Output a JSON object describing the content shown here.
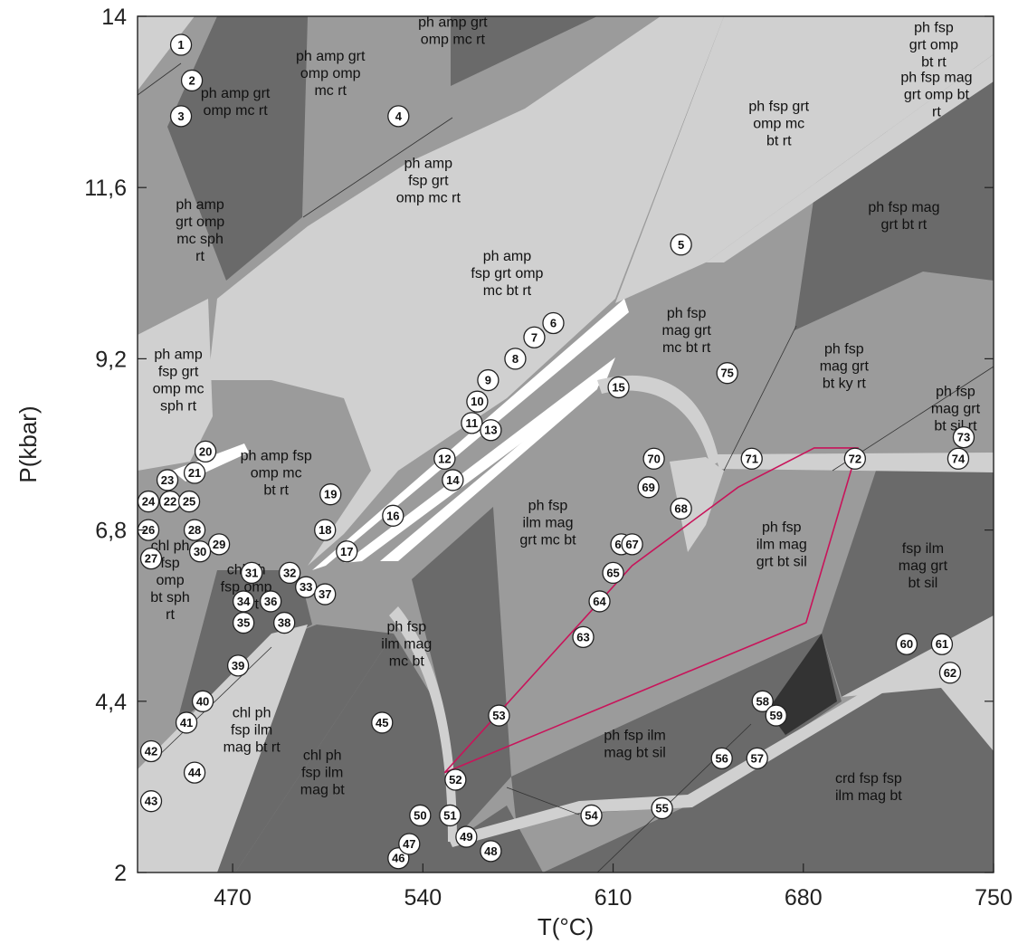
{
  "chart_data": {
    "type": "pseudosection",
    "xlabel": "T(°C)",
    "ylabel": "P(kbar)",
    "xlim": [
      435,
      750
    ],
    "ylim": [
      2,
      14
    ],
    "xticks": [
      "470",
      "540",
      "610",
      "680",
      "750"
    ],
    "yticks": [
      "2",
      "4,4",
      "6,8",
      "9,2",
      "11,6",
      "14"
    ],
    "fields": [
      {
        "label": [
          "ph amp grt",
          "omp mc rt"
        ],
        "T": 471,
        "P": 12.8,
        "shade": "#6a6a6a"
      },
      {
        "label": [
          "ph amp grt",
          "omp omp",
          "mc rt"
        ],
        "T": 506,
        "P": 13.2,
        "shade": "#9b9b9b"
      },
      {
        "label": [
          "ph amp grt",
          "omp mc rt"
        ],
        "T": 551,
        "P": 13.8,
        "shade": "#6a6a6a"
      },
      {
        "label": [
          "ph fsp",
          "grt omp",
          "bt  rt"
        ],
        "T": 728,
        "P": 13.6,
        "shade": "#6a6a6a"
      },
      {
        "label": [
          "ph fsp grt",
          "omp mc",
          "bt rt"
        ],
        "T": 671,
        "P": 12.5,
        "shade": "#9b9b9b"
      },
      {
        "label": [
          "ph fsp mag",
          "grt omp bt",
          "rt"
        ],
        "T": 729,
        "P": 12.9,
        "shade": "#9b9b9b"
      },
      {
        "label": [
          "ph amp",
          "fsp grt",
          "omp mc  rt"
        ],
        "T": 542,
        "P": 11.7,
        "shade": "#d0d0d0"
      },
      {
        "label": [
          "ph fsp mag",
          "grt bt rt"
        ],
        "T": 717,
        "P": 11.2,
        "shade": "#6a6a6a"
      },
      {
        "label": [
          "ph amp",
          "grt omp",
          "mc sph",
          "rt"
        ],
        "T": 458,
        "P": 11.0,
        "shade": "#9b9b9b"
      },
      {
        "label": [
          "ph amp",
          "fsp grt omp",
          "mc bt rt"
        ],
        "T": 571,
        "P": 10.4,
        "shade": "#d0d0d0"
      },
      {
        "label": [
          "ph fsp",
          "mag grt",
          "mc bt rt"
        ],
        "T": 637,
        "P": 9.6,
        "shade": "#9b9b9b"
      },
      {
        "label": [
          "ph fsp",
          "mag grt",
          "bt ky rt"
        ],
        "T": 695,
        "P": 9.1,
        "shade": "#9b9b9b"
      },
      {
        "label": [
          "ph amp",
          "fsp grt",
          "omp mc",
          "sph rt"
        ],
        "T": 450,
        "P": 8.9,
        "shade": "#9b9b9b"
      },
      {
        "label": [
          "ph fsp",
          "mag grt",
          "bt sil rt"
        ],
        "T": 736,
        "P": 8.5,
        "shade": "#9b9b9b"
      },
      {
        "label": [
          "ph amp fsp",
          "omp mc",
          "bt rt"
        ],
        "T": 486,
        "P": 7.6,
        "shade": "#9b9b9b"
      },
      {
        "label": [
          "ph fsp",
          "ilm mag",
          "grt mc bt"
        ],
        "T": 586,
        "P": 6.9,
        "shade": "#9b9b9b"
      },
      {
        "label": [
          "ph fsp",
          "ilm mag",
          "grt bt sil"
        ],
        "T": 672,
        "P": 6.6,
        "shade": "#9b9b9b"
      },
      {
        "label": [
          "fsp ilm",
          "mag grt",
          "bt sil"
        ],
        "T": 724,
        "P": 6.3,
        "shade": "#6a6a6a"
      },
      {
        "label": [
          "chl ph",
          "fsp",
          "omp",
          "bt sph",
          "rt"
        ],
        "T": 447,
        "P": 6.1,
        "shade": "#9b9b9b"
      },
      {
        "label": [
          "chl ph",
          "fsp omp",
          "bt rt"
        ],
        "T": 475,
        "P": 6.0,
        "shade": "#6a6a6a"
      },
      {
        "label": [
          "ph fsp",
          "ilm mag",
          "mc bt"
        ],
        "T": 534,
        "P": 5.2,
        "shade": "#6a6a6a"
      },
      {
        "label": [
          "chl ph",
          "fsp ilm",
          "mag bt rt"
        ],
        "T": 477,
        "P": 4.0,
        "shade": "#6a6a6a"
      },
      {
        "label": [
          "ph fsp ilm",
          "mag bt sil"
        ],
        "T": 618,
        "P": 3.8,
        "shade": "#6a6a6a"
      },
      {
        "label": [
          "chl ph",
          "fsp ilm",
          "mag bt"
        ],
        "T": 503,
        "P": 3.4,
        "shade": "#6a6a6a"
      },
      {
        "label": [
          "crd fsp fsp",
          "ilm mag bt"
        ],
        "T": 704,
        "P": 3.2,
        "shade": "#6a6a6a"
      }
    ],
    "highlight_polygon": {
      "color": "#c8145a",
      "vertices": [
        [
          548,
          3.4
        ],
        [
          617,
          6.3
        ],
        [
          656,
          7.4
        ],
        [
          684,
          7.95
        ],
        [
          700,
          7.95
        ],
        [
          681,
          5.5
        ]
      ]
    },
    "points": [
      {
        "n": "1",
        "T": 451,
        "P": 13.6
      },
      {
        "n": "2",
        "T": 455,
        "P": 13.1
      },
      {
        "n": "3",
        "T": 451,
        "P": 12.6
      },
      {
        "n": "4",
        "T": 531,
        "P": 12.6
      },
      {
        "n": "5",
        "T": 635,
        "P": 10.8
      },
      {
        "n": "6",
        "T": 588,
        "P": 9.7
      },
      {
        "n": "7",
        "T": 581,
        "P": 9.5
      },
      {
        "n": "8",
        "T": 574,
        "P": 9.2
      },
      {
        "n": "9",
        "T": 564,
        "P": 8.9
      },
      {
        "n": "10",
        "T": 560,
        "P": 8.6
      },
      {
        "n": "11",
        "T": 558,
        "P": 8.3
      },
      {
        "n": "12",
        "T": 548,
        "P": 7.8
      },
      {
        "n": "13",
        "T": 565,
        "P": 8.2
      },
      {
        "n": "14",
        "T": 551,
        "P": 7.5
      },
      {
        "n": "15",
        "T": 612,
        "P": 8.8
      },
      {
        "n": "16",
        "T": 529,
        "P": 7.0
      },
      {
        "n": "17",
        "T": 512,
        "P": 6.5
      },
      {
        "n": "18",
        "T": 504,
        "P": 6.8
      },
      {
        "n": "19",
        "T": 506,
        "P": 7.3
      },
      {
        "n": "20",
        "T": 460,
        "P": 7.9
      },
      {
        "n": "21",
        "T": 456,
        "P": 7.6
      },
      {
        "n": "22",
        "T": 447,
        "P": 7.2
      },
      {
        "n": "23",
        "T": 446,
        "P": 7.5
      },
      {
        "n": "24",
        "T": 439,
        "P": 7.2
      },
      {
        "n": "25",
        "T": 454,
        "P": 7.2
      },
      {
        "n": "26",
        "T": 439,
        "P": 6.8
      },
      {
        "n": "27",
        "T": 440,
        "P": 6.4
      },
      {
        "n": "28",
        "T": 456,
        "P": 6.8
      },
      {
        "n": "29",
        "T": 465,
        "P": 6.6
      },
      {
        "n": "30",
        "T": 458,
        "P": 6.5
      },
      {
        "n": "31",
        "T": 477,
        "P": 6.2
      },
      {
        "n": "32",
        "T": 491,
        "P": 6.2
      },
      {
        "n": "33",
        "T": 497,
        "P": 6.0
      },
      {
        "n": "34",
        "T": 474,
        "P": 5.8
      },
      {
        "n": "35",
        "T": 474,
        "P": 5.5
      },
      {
        "n": "36",
        "T": 484,
        "P": 5.8
      },
      {
        "n": "37",
        "T": 504,
        "P": 5.9
      },
      {
        "n": "38",
        "T": 489,
        "P": 5.5
      },
      {
        "n": "39",
        "T": 472,
        "P": 4.9
      },
      {
        "n": "40",
        "T": 459,
        "P": 4.4
      },
      {
        "n": "41",
        "T": 453,
        "P": 4.1
      },
      {
        "n": "42",
        "T": 440,
        "P": 3.7
      },
      {
        "n": "43",
        "T": 440,
        "P": 3.0
      },
      {
        "n": "44",
        "T": 456,
        "P": 3.4
      },
      {
        "n": "45",
        "T": 525,
        "P": 4.1
      },
      {
        "n": "46",
        "T": 531,
        "P": 2.2
      },
      {
        "n": "47",
        "T": 535,
        "P": 2.4
      },
      {
        "n": "48",
        "T": 565,
        "P": 2.3
      },
      {
        "n": "49",
        "T": 556,
        "P": 2.5
      },
      {
        "n": "50",
        "T": 539,
        "P": 2.8
      },
      {
        "n": "51",
        "T": 550,
        "P": 2.8
      },
      {
        "n": "52",
        "T": 552,
        "P": 3.3
      },
      {
        "n": "53",
        "T": 568,
        "P": 4.2
      },
      {
        "n": "54",
        "T": 602,
        "P": 2.8
      },
      {
        "n": "55",
        "T": 628,
        "P": 2.9
      },
      {
        "n": "56",
        "T": 650,
        "P": 3.6
      },
      {
        "n": "57",
        "T": 663,
        "P": 3.6
      },
      {
        "n": "58",
        "T": 665,
        "P": 4.4
      },
      {
        "n": "59",
        "T": 670,
        "P": 4.2
      },
      {
        "n": "60",
        "T": 718,
        "P": 5.2
      },
      {
        "n": "61",
        "T": 731,
        "P": 5.2
      },
      {
        "n": "62",
        "T": 734,
        "P": 4.8
      },
      {
        "n": "63",
        "T": 599,
        "P": 5.3
      },
      {
        "n": "64",
        "T": 605,
        "P": 5.8
      },
      {
        "n": "65",
        "T": 610,
        "P": 6.2
      },
      {
        "n": "66",
        "T": 613,
        "P": 6.6
      },
      {
        "n": "67",
        "T": 617,
        "P": 6.6
      },
      {
        "n": "68",
        "T": 635,
        "P": 7.1
      },
      {
        "n": "69",
        "T": 623,
        "P": 7.4
      },
      {
        "n": "70",
        "T": 625,
        "P": 7.8
      },
      {
        "n": "71",
        "T": 661,
        "P": 7.8
      },
      {
        "n": "72",
        "T": 699,
        "P": 7.8
      },
      {
        "n": "73",
        "T": 739,
        "P": 8.1
      },
      {
        "n": "74",
        "T": 737,
        "P": 7.8
      },
      {
        "n": "75",
        "T": 652,
        "P": 9.0
      }
    ]
  }
}
